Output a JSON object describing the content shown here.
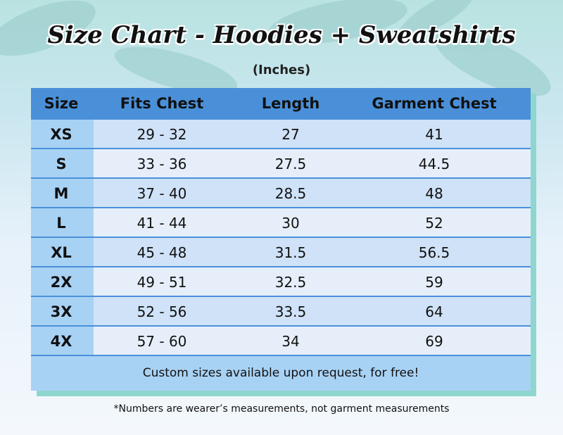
{
  "header": {
    "title": "Size Chart - Hoodies + Sweatshirts",
    "subtitle": "(Inches)"
  },
  "table": {
    "columns": [
      "Size",
      "Fits Chest",
      "Length",
      "Garment Chest"
    ],
    "rows": [
      [
        "XS",
        "29 - 32",
        "27",
        "41"
      ],
      [
        "S",
        "33 - 36",
        "27.5",
        "44.5"
      ],
      [
        "M",
        "37 - 40",
        "28.5",
        "48"
      ],
      [
        "L",
        "41 - 44",
        "30",
        "52"
      ],
      [
        "XL",
        "45 - 48",
        "31.5",
        "56.5"
      ],
      [
        "2X",
        "49 - 51",
        "32.5",
        "59"
      ],
      [
        "3X",
        "52 - 56",
        "33.5",
        "64"
      ],
      [
        "4X",
        "57 - 60",
        "34",
        "69"
      ]
    ],
    "footer": "Custom sizes available upon request, for free!"
  },
  "footnote": "*Numbers are wearer’s measurements, not garment measurements"
}
